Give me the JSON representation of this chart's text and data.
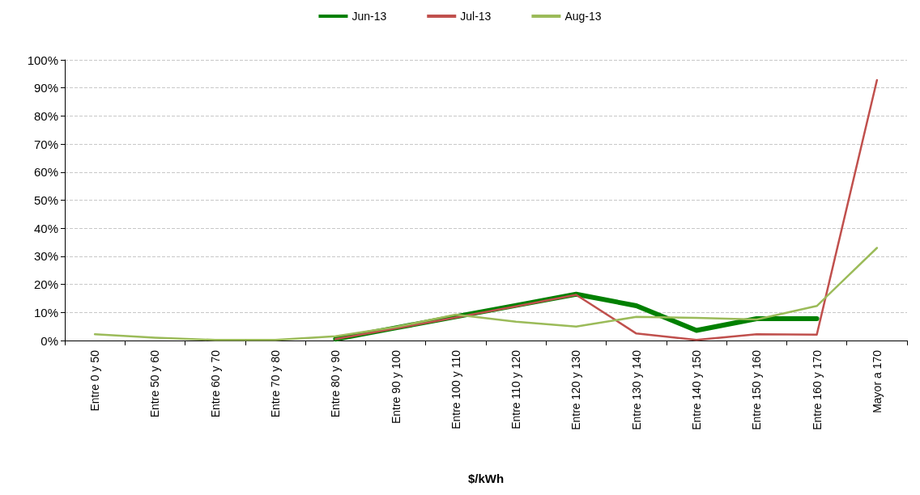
{
  "chart_data": {
    "type": "line",
    "xlabel": "$/kWh",
    "categories": [
      "Entre 0 y 50",
      "Entre 50 y 60",
      "Entre 60 y 70",
      "Entre 70 y 80",
      "Entre 80 y 90",
      "Entre 90 y 100",
      "Entre 100 y 110",
      "Entre 110 y 120",
      "Entre 120 y 130",
      "Entre 130 y 140",
      "Entre 140 y 150",
      "Entre 150 y 160",
      "Entre 160 y 170",
      "Mayor a 170"
    ],
    "series": [
      {
        "name": "Jun-13",
        "color": "#008000",
        "values": [
          null,
          null,
          null,
          null,
          0.5,
          4.5,
          8.5,
          12.5,
          16.5,
          12.4,
          3.6,
          7.8,
          7.8,
          null
        ]
      },
      {
        "name": "Jul-13",
        "color": "#c0504d",
        "values": [
          null,
          null,
          null,
          null,
          0.5,
          4.3,
          8.2,
          12.2,
          16.3,
          2.5,
          0.2,
          2.2,
          2.1,
          92.8
        ]
      },
      {
        "name": "Aug-13",
        "color": "#9bbb59",
        "values": [
          2.2,
          1.0,
          0.2,
          0.2,
          1.5,
          4.8,
          9.2,
          6.7,
          5.0,
          8.4,
          8.1,
          7.5,
          12.3,
          33
        ]
      }
    ],
    "ylim": [
      0,
      100
    ],
    "yticks": [
      {
        "value": 0,
        "label": "0%"
      },
      {
        "value": 10,
        "label": "10%"
      },
      {
        "value": 20,
        "label": "20%"
      },
      {
        "value": 30,
        "label": "30%"
      },
      {
        "value": 40,
        "label": "40%"
      },
      {
        "value": 50,
        "label": "50%"
      },
      {
        "value": 60,
        "label": "60%"
      },
      {
        "value": 70,
        "label": "70%"
      },
      {
        "value": 80,
        "label": "80%"
      },
      {
        "value": 90,
        "label": "90%"
      },
      {
        "value": 100,
        "label": "100%"
      }
    ],
    "grid": "y",
    "legend": "top",
    "marker": "none",
    "line_style": "solid"
  }
}
